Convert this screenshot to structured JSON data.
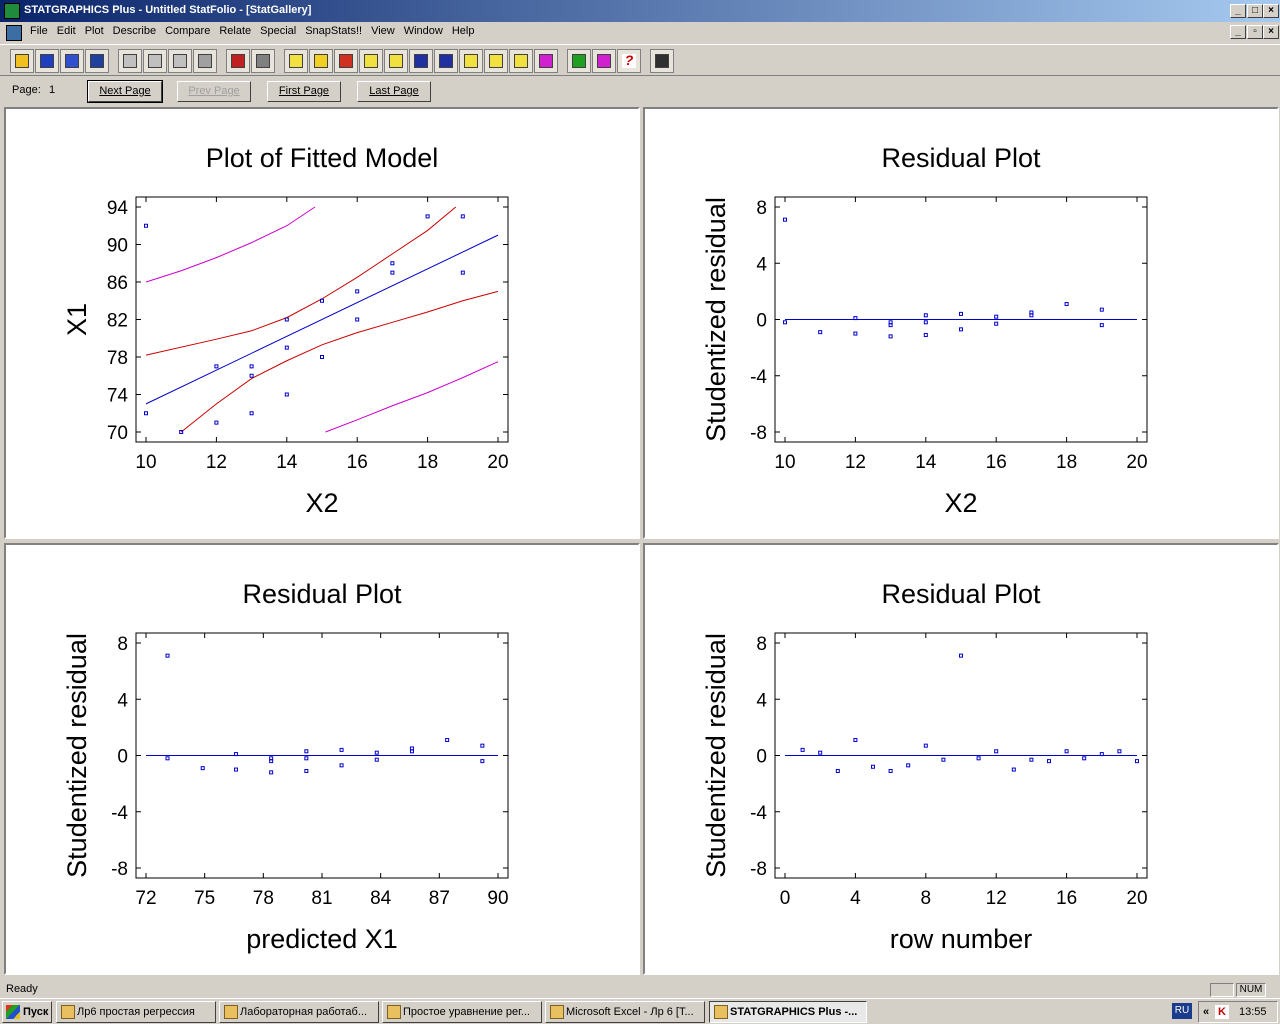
{
  "window": {
    "title": "STATGRAPHICS Plus - Untitled StatFolio - [StatGallery]"
  },
  "menu": [
    "File",
    "Edit",
    "Plot",
    "Describe",
    "Compare",
    "Relate",
    "Special",
    "SnapStats!!",
    "View",
    "Window",
    "Help"
  ],
  "toolbar_icons": [
    "open-icon",
    "save-icon",
    "spreadsheet-icon",
    "data-icon",
    "cut-icon",
    "copy-icon",
    "paste-icon",
    "undo-icon",
    "print-icon",
    "print-preview-icon",
    "scatter-icon",
    "boxplot-icon",
    "barchart-icon",
    "xy-icon",
    "matrix-icon",
    "linechart-icon",
    "distribution-icon",
    "timeseries-icon",
    "globe-icon",
    "tree-icon",
    "glm-icon",
    "forward-icon",
    "wizard-icon",
    "help-icon",
    "calculator-icon"
  ],
  "pagebar": {
    "page_label": "Page:",
    "page_number": "1",
    "next": "Next Page",
    "prev": "Prev Page",
    "first": "First Page",
    "last": "Last Page"
  },
  "chart_data": [
    {
      "type": "line",
      "title": "Plot of Fitted Model",
      "xlabel": "X2",
      "ylabel": "X1",
      "xlim": [
        10,
        20
      ],
      "ylim": [
        70,
        94
      ],
      "xticks": [
        10,
        12,
        14,
        16,
        18,
        20
      ],
      "yticks": [
        70,
        74,
        78,
        82,
        86,
        90,
        94
      ],
      "points": [
        [
          10,
          92
        ],
        [
          10,
          72
        ],
        [
          11,
          70
        ],
        [
          12,
          77
        ],
        [
          12,
          71
        ],
        [
          13,
          77
        ],
        [
          13,
          76
        ],
        [
          13,
          72
        ],
        [
          14,
          82
        ],
        [
          14,
          79
        ],
        [
          14,
          74
        ],
        [
          15,
          84
        ],
        [
          15,
          78
        ],
        [
          16,
          85
        ],
        [
          16,
          82
        ],
        [
          17,
          88
        ],
        [
          17,
          87
        ],
        [
          18,
          93
        ],
        [
          19,
          93
        ],
        [
          19,
          87
        ]
      ],
      "series": [
        {
          "color": "#0000cc",
          "values": [
            [
              10,
              73
            ],
            [
              20,
              91
            ]
          ]
        },
        {
          "color": "#cc0000",
          "values": [
            [
              10,
              78.2
            ],
            [
              12,
              79.9
            ],
            [
              13,
              80.8
            ],
            [
              14,
              82.2
            ],
            [
              15,
              84.2
            ],
            [
              16,
              86.5
            ],
            [
              17,
              89
            ],
            [
              18,
              91.5
            ],
            [
              18.8,
              94
            ]
          ]
        },
        {
          "color": "#cc0000",
          "values": [
            [
              11,
              70
            ],
            [
              12,
              73
            ],
            [
              13,
              75.7
            ],
            [
              14,
              77.6
            ],
            [
              15,
              79.3
            ],
            [
              16,
              80.6
            ],
            [
              17,
              81.7
            ],
            [
              18,
              82.8
            ],
            [
              19,
              84
            ],
            [
              20,
              85
            ]
          ]
        },
        {
          "color": "#cc00cc",
          "values": [
            [
              10,
              86
            ],
            [
              11,
              87.2
            ],
            [
              12,
              88.6
            ],
            [
              13,
              90.2
            ],
            [
              14,
              92
            ],
            [
              14.8,
              94
            ]
          ]
        },
        {
          "color": "#cc00cc",
          "values": [
            [
              15.1,
              70
            ],
            [
              16,
              71.3
            ],
            [
              17,
              72.8
            ],
            [
              18,
              74.2
            ],
            [
              19,
              75.8
            ],
            [
              20,
              77.5
            ]
          ]
        }
      ]
    },
    {
      "type": "scatter",
      "title": "Residual Plot",
      "xlabel": "X2",
      "ylabel": "Studentized residual",
      "xlim": [
        10,
        20
      ],
      "ylim": [
        -8,
        8
      ],
      "xticks": [
        10,
        12,
        14,
        16,
        18,
        20
      ],
      "yticks": [
        -8,
        -4,
        0,
        4,
        8
      ],
      "points": [
        [
          10,
          7.1
        ],
        [
          10,
          -0.2
        ],
        [
          11,
          -0.9
        ],
        [
          12,
          0.1
        ],
        [
          12,
          -1.0
        ],
        [
          13,
          -0.2
        ],
        [
          13,
          -0.4
        ],
        [
          13,
          -1.2
        ],
        [
          14,
          0.3
        ],
        [
          14,
          -0.2
        ],
        [
          14,
          -1.1
        ],
        [
          15,
          0.4
        ],
        [
          15,
          -0.7
        ],
        [
          16,
          0.2
        ],
        [
          16,
          -0.3
        ],
        [
          17,
          0.5
        ],
        [
          17,
          0.3
        ],
        [
          18,
          1.1
        ],
        [
          19,
          0.7
        ],
        [
          19,
          -0.4
        ]
      ]
    },
    {
      "type": "scatter",
      "title": "Residual Plot",
      "xlabel": "predicted X1",
      "ylabel": "Studentized residual",
      "xlim": [
        72,
        90
      ],
      "ylim": [
        -8,
        8
      ],
      "xticks": [
        72,
        75,
        78,
        81,
        84,
        87,
        90
      ],
      "yticks": [
        -8,
        -4,
        0,
        4,
        8
      ],
      "points": [
        [
          73.1,
          7.1
        ],
        [
          73.1,
          -0.2
        ],
        [
          74.9,
          -0.9
        ],
        [
          76.6,
          0.1
        ],
        [
          76.6,
          -1.0
        ],
        [
          78.4,
          -0.2
        ],
        [
          78.4,
          -0.4
        ],
        [
          78.4,
          -1.2
        ],
        [
          80.2,
          0.3
        ],
        [
          80.2,
          -0.2
        ],
        [
          80.2,
          -1.1
        ],
        [
          82.0,
          0.4
        ],
        [
          82.0,
          -0.7
        ],
        [
          83.8,
          0.2
        ],
        [
          83.8,
          -0.3
        ],
        [
          85.6,
          0.5
        ],
        [
          85.6,
          0.3
        ],
        [
          87.4,
          1.1
        ],
        [
          89.2,
          0.7
        ],
        [
          89.2,
          -0.4
        ]
      ]
    },
    {
      "type": "scatter",
      "title": "Residual Plot",
      "xlabel": "row number",
      "ylabel": "Studentized residual",
      "xlim": [
        0,
        20
      ],
      "ylim": [
        -8,
        8
      ],
      "xticks": [
        0,
        4,
        8,
        12,
        16,
        20
      ],
      "yticks": [
        -8,
        -4,
        0,
        4,
        8
      ],
      "points": [
        [
          1,
          0.4
        ],
        [
          2,
          0.2
        ],
        [
          3,
          -1.1
        ],
        [
          4,
          1.1
        ],
        [
          5,
          -0.8
        ],
        [
          6,
          -1.1
        ],
        [
          7,
          -0.7
        ],
        [
          8,
          0.7
        ],
        [
          9,
          -0.3
        ],
        [
          10,
          7.1
        ],
        [
          11,
          -0.2
        ],
        [
          12,
          0.3
        ],
        [
          13,
          -1.0
        ],
        [
          14,
          -0.3
        ],
        [
          15,
          -0.4
        ],
        [
          16,
          0.3
        ],
        [
          17,
          -0.2
        ],
        [
          18,
          0.1
        ],
        [
          19,
          0.3
        ],
        [
          20,
          -0.4
        ]
      ]
    }
  ],
  "status": {
    "text": "Ready",
    "num": "NUM"
  },
  "taskbar": {
    "start": "Пуск",
    "items": [
      "Лр6 простая регрессия",
      "Лабораторная работаб...",
      "Простое уравнение рег...",
      "Microsoft Excel - Лр 6  [Т...",
      "STATGRAPHICS Plus -..."
    ],
    "lang": "RU",
    "time": "13:55"
  }
}
